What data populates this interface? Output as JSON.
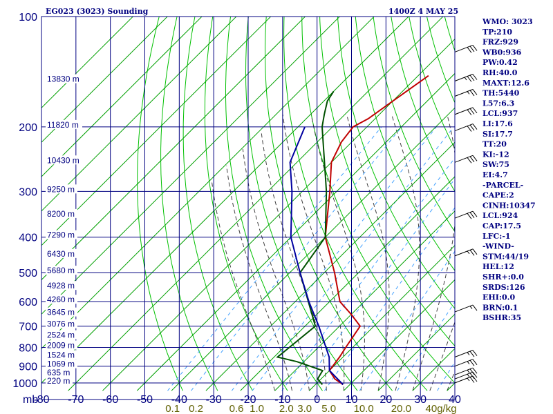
{
  "header": {
    "station": "EG023 (3023) Sounding",
    "time": "1400Z  4 MAY 25"
  },
  "indices": [
    "WMO: 3023",
    "TP:210",
    "FRZ:929",
    "WB0:936",
    "PW:0.42",
    "RH:40.0",
    "MAXT:12.6",
    "TH:5440",
    "L57:6.3",
    "LCL:937",
    "LI:17.6",
    "SI:17.7",
    "TT:20",
    "KI:-12",
    "SW:75",
    "EI:4.7",
    "-PARCEL-",
    "CAPE:2",
    "CINH:10347",
    "LCL:924",
    "CAP:17.5",
    "LFC:-1",
    "-WIND-",
    "STM:44/19",
    "HEL:12",
    "SHR+:0.0",
    "SRDS:126",
    "EHI:0.0",
    "BRN:0.1",
    "BSHR:35"
  ],
  "chart_data": {
    "type": "line",
    "diagram": "skew-T log-P",
    "pressure_axis": {
      "scale": "log",
      "ylim": [
        1000,
        100
      ],
      "unit_label": "mb",
      "ticks": [
        100,
        200,
        300,
        400,
        500,
        600,
        700,
        800,
        900,
        1000
      ],
      "tick_labels": [
        "100",
        "200",
        "300",
        "400",
        "500",
        "600",
        "700",
        "800",
        "900",
        "1000"
      ]
    },
    "temperature_axis": {
      "xlim": [
        -80,
        40
      ],
      "ticks": [
        -80,
        -70,
        -60,
        -50,
        -40,
        -30,
        -20,
        -10,
        0,
        10,
        20,
        30,
        40
      ],
      "tick_labels": [
        "-80",
        "-70",
        "-60",
        "-50",
        "-40",
        "-30",
        "-20",
        "-10",
        "0",
        "10",
        "20",
        "30",
        "40"
      ]
    },
    "mixing_ratio_labels": [
      "0.1",
      "0.2",
      "0.6",
      "1.0",
      "2.0",
      "3.0",
      "5.0",
      "10.0",
      "20.0",
      "40g/kg"
    ],
    "height_labels": [
      {
        "p": 150,
        "label": "13830 m"
      },
      {
        "p": 200,
        "label": "11820 m"
      },
      {
        "p": 250,
        "label": "10430 m"
      },
      {
        "p": 300,
        "label": "9250 m"
      },
      {
        "p": 350,
        "label": "8200 m"
      },
      {
        "p": 400,
        "label": "7290 m"
      },
      {
        "p": 450,
        "label": "6430 m"
      },
      {
        "p": 500,
        "label": "5680 m"
      },
      {
        "p": 550,
        "label": "4928 m"
      },
      {
        "p": 600,
        "label": "4260 m"
      },
      {
        "p": 650,
        "label": "3645 m"
      },
      {
        "p": 700,
        "label": "3076 m"
      },
      {
        "p": 750,
        "label": "2524 m"
      },
      {
        "p": 800,
        "label": "2009 m"
      },
      {
        "p": 850,
        "label": "1524 m"
      },
      {
        "p": 900,
        "label": "1069 m"
      },
      {
        "p": 950,
        "label": "635 m"
      },
      {
        "p": 1000,
        "label": "220 m"
      }
    ],
    "series": [
      {
        "key": "temperature",
        "color": "#c00000",
        "points": [
          [
            1010,
            8
          ],
          [
            975,
            4
          ],
          [
            925,
            0
          ],
          [
            850,
            -1
          ],
          [
            800,
            -2
          ],
          [
            700,
            -4
          ],
          [
            650,
            -10
          ],
          [
            600,
            -17
          ],
          [
            500,
            -27
          ],
          [
            400,
            -40
          ],
          [
            300,
            -52
          ],
          [
            250,
            -60
          ],
          [
            220,
            -63
          ],
          [
            200,
            -64
          ],
          [
            190,
            -62
          ],
          [
            170,
            -60
          ],
          [
            145,
            -57
          ]
        ]
      },
      {
        "key": "dewpoint",
        "color": "#005000",
        "points": [
          [
            1010,
            2
          ],
          [
            975,
            -1
          ],
          [
            925,
            -2
          ],
          [
            875,
            -12
          ],
          [
            850,
            -19
          ],
          [
            700,
            -17
          ],
          [
            500,
            -37
          ],
          [
            400,
            -40
          ],
          [
            300,
            -53
          ],
          [
            250,
            -62
          ],
          [
            200,
            -73
          ],
          [
            185,
            -76
          ],
          [
            170,
            -79
          ],
          [
            160,
            -80
          ]
        ]
      },
      {
        "key": "parcel",
        "color": "#0000a0",
        "points": [
          [
            1010,
            8
          ],
          [
            925,
            0
          ],
          [
            850,
            -4
          ],
          [
            700,
            -16
          ],
          [
            600,
            -26
          ],
          [
            500,
            -37
          ],
          [
            400,
            -50
          ],
          [
            300,
            -63
          ],
          [
            250,
            -72
          ],
          [
            200,
            -78
          ]
        ]
      }
    ],
    "wind_barbs": [
      {
        "p": 1000,
        "dir": 250,
        "spd": 25
      },
      {
        "p": 975,
        "dir": 250,
        "spd": 25
      },
      {
        "p": 950,
        "dir": 250,
        "spd": 25
      },
      {
        "p": 900,
        "dir": 250,
        "spd": 25
      },
      {
        "p": 850,
        "dir": 250,
        "spd": 25
      },
      {
        "p": 640,
        "dir": 250,
        "spd": 15
      },
      {
        "p": 450,
        "dir": 250,
        "spd": 25
      },
      {
        "p": 355,
        "dir": 250,
        "spd": 30
      },
      {
        "p": 250,
        "dir": 250,
        "spd": 30
      },
      {
        "p": 205,
        "dir": 250,
        "spd": 30
      },
      {
        "p": 185,
        "dir": 250,
        "spd": 30
      },
      {
        "p": 165,
        "dir": 250,
        "spd": 25
      },
      {
        "p": 150,
        "dir": 250,
        "spd": 35
      },
      {
        "p": 125,
        "dir": 250,
        "spd": 30
      }
    ],
    "colors": {
      "grid": "#000080",
      "isotherm": "#00a000",
      "dry_adiabat": "#00c000",
      "moist_adiabat": "#404040",
      "mixing_ratio": "#40a0ff",
      "mixing_label": "#606000"
    }
  }
}
